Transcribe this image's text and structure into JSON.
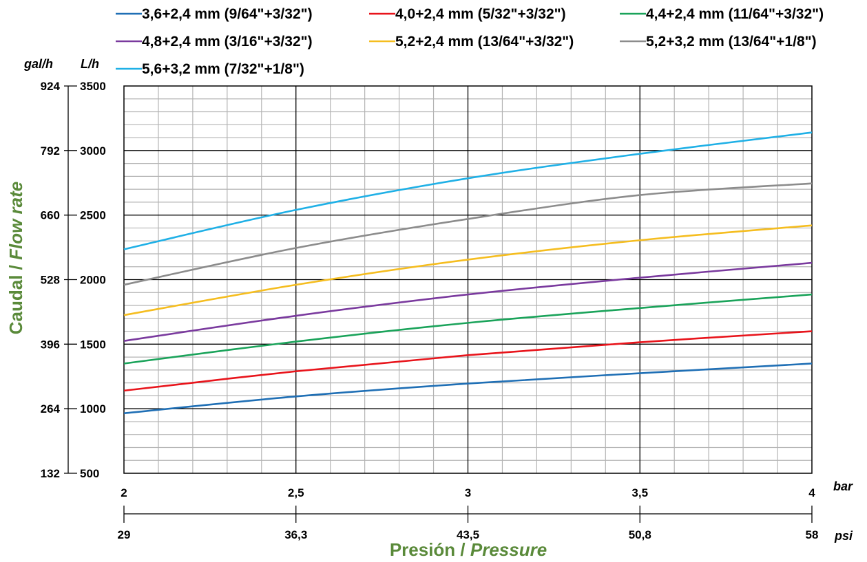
{
  "chart_data": {
    "type": "line",
    "xlabel": "Presión / ",
    "xlabel_italic": "Pressure",
    "ylabel": "Caudal / ",
    "ylabel_italic": "Flow rate",
    "axis_title_color": "#5a8a3a",
    "x_primary": {
      "unit": "bar",
      "range": [
        2,
        4
      ],
      "ticks": [
        "2",
        "2,5",
        "3",
        "3,5",
        "4"
      ]
    },
    "x_secondary": {
      "unit": "psi",
      "ticks": [
        "29",
        "36,3",
        "43,5",
        "50,8",
        "58"
      ]
    },
    "y_primary": {
      "unit": "L/h",
      "range": [
        500,
        3500
      ],
      "ticks": [
        "500",
        "1000",
        "1500",
        "2000",
        "2500",
        "3000",
        "3500"
      ]
    },
    "y_secondary": {
      "unit": "gal/h",
      "ticks": [
        "132",
        "264",
        "396",
        "528",
        "660",
        "792",
        "924"
      ]
    },
    "grid": true,
    "legend_position": "top",
    "series": [
      {
        "name": "3,6+2,4 mm (9/64\"+3/32\")",
        "color": "#1f6fb5",
        "x": [
          2,
          2.5,
          3,
          3.5,
          4
        ],
        "values": [
          965,
          1095,
          1195,
          1275,
          1350
        ]
      },
      {
        "name": "4,0+2,4 mm (5/32\"+3/32\")",
        "color": "#e8141b",
        "x": [
          2,
          2.5,
          3,
          3.5,
          4
        ],
        "values": [
          1140,
          1290,
          1415,
          1515,
          1600
        ]
      },
      {
        "name": "4,4+2,4 mm (11/64\"+3/32\")",
        "color": "#1aa35a",
        "x": [
          2,
          2.5,
          3,
          3.5,
          4
        ],
        "values": [
          1350,
          1520,
          1665,
          1780,
          1885
        ]
      },
      {
        "name": "4,8+2,4 mm (3/16\"+3/32\")",
        "color": "#7a3a9e",
        "x": [
          2,
          2.5,
          3,
          3.5,
          4
        ],
        "values": [
          1525,
          1720,
          1885,
          2015,
          2130
        ]
      },
      {
        "name": "5,2+2,4 mm (13/64\"+3/32\")",
        "color": "#f5bd1f",
        "x": [
          2,
          2.5,
          3,
          3.5,
          4
        ],
        "values": [
          1725,
          1960,
          2155,
          2305,
          2420
        ]
      },
      {
        "name": "5,2+3,2 mm (13/64\"+1/8\")",
        "color": "#8c8c8c",
        "x": [
          2,
          2.5,
          3,
          3.5,
          4
        ],
        "values": [
          1960,
          2245,
          2470,
          2655,
          2745
        ]
      },
      {
        "name": "5,6+3,2 mm (7/32\"+1/8\")",
        "color": "#1fb0e6",
        "x": [
          2,
          2.5,
          3,
          3.5,
          4
        ],
        "values": [
          2235,
          2540,
          2785,
          2975,
          3140
        ]
      }
    ]
  }
}
